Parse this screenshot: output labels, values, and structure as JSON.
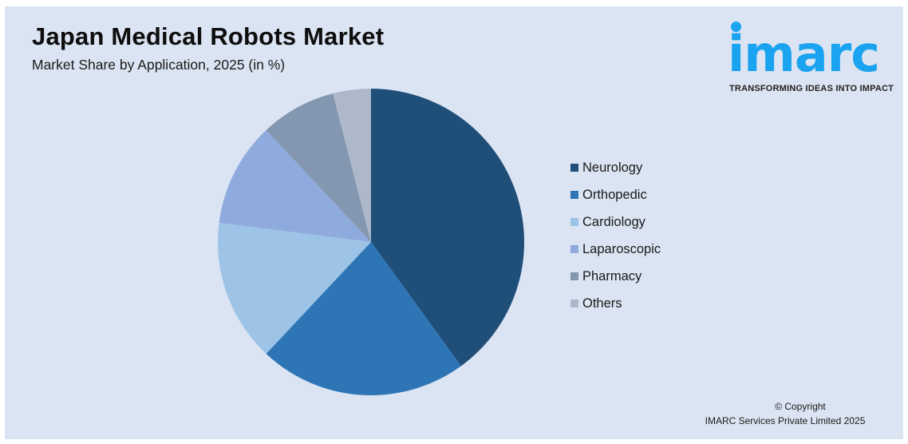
{
  "header": {
    "title": "Japan Medical Robots Market",
    "subtitle": "Market Share by Application, 2025 (in %)"
  },
  "logo": {
    "wordmark": "imarc",
    "tagline": "TRANSFORMING IDEAS INTO IMPACT",
    "color": "#1aa3f0"
  },
  "legend": {
    "items": [
      {
        "label": "Neurology",
        "color": "#1f4e79"
      },
      {
        "label": "Orthopedic",
        "color": "#2e75b6"
      },
      {
        "label": "Cardiology",
        "color": "#9dc3e6"
      },
      {
        "label": "Laparoscopic",
        "color": "#8faadc"
      },
      {
        "label": "Pharmacy",
        "color": "#8497b0"
      },
      {
        "label": "Others",
        "color": "#adb9ca"
      }
    ]
  },
  "footer": {
    "copyright_line1": "© Copyright",
    "copyright_line2": "IMARC Services Private Limited 2025"
  },
  "chart_data": {
    "type": "pie",
    "title": "Japan Medical Robots Market",
    "subtitle": "Market Share by Application, 2025 (in %)",
    "categories": [
      "Neurology",
      "Orthopedic",
      "Cardiology",
      "Laparoscopic",
      "Pharmacy",
      "Others"
    ],
    "values": [
      40,
      22,
      15,
      11,
      8,
      4
    ],
    "colors": [
      "#1f4e79",
      "#2e75b6",
      "#9dc3e6",
      "#8faadc",
      "#8497b0",
      "#adb9ca"
    ],
    "start_angle": "12 o'clock, clockwise",
    "legend_position": "right",
    "data_labels": false
  }
}
